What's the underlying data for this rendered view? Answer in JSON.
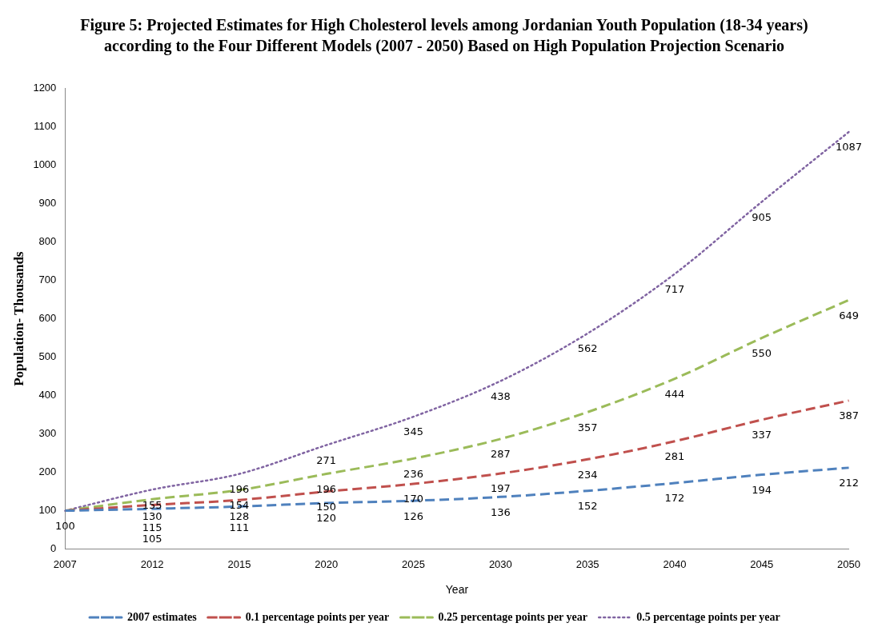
{
  "chart_data": {
    "type": "line",
    "title": "Figure 5: Projected Estimates for  High Cholesterol levels among Jordanian Youth Population (18-34 years) according to the Four Different Models (2007 - 2050) Based on High Population Projection Scenario",
    "xlabel": "Year",
    "ylabel": "Population- Thousands",
    "categories": [
      "2007",
      "2012",
      "2015",
      "2020",
      "2025",
      "2030",
      "2035",
      "2040",
      "2045",
      "2050"
    ],
    "series": [
      {
        "name": "2007 estimates",
        "color": "#4f81bd",
        "line_style": "dashed",
        "values": [
          100,
          105,
          111,
          120,
          126,
          136,
          152,
          172,
          194,
          212
        ],
        "value_labels": [
          "100",
          "105",
          "111",
          "120",
          "126",
          "136",
          "152",
          "172",
          "194",
          "212"
        ]
      },
      {
        "name": "0.1 percentage points per year",
        "color": "#c0504d",
        "line_style": "dashed",
        "values": [
          100,
          115,
          128,
          150,
          170,
          197,
          234,
          281,
          337,
          387
        ],
        "value_labels": [
          null,
          "115",
          "128",
          "150",
          "170",
          "197",
          "234",
          "281",
          "337",
          "387"
        ]
      },
      {
        "name": "0.25 percentage points per year",
        "color": "#9bbb59",
        "line_style": "dashed",
        "values": [
          100,
          130,
          154,
          196,
          236,
          287,
          357,
          444,
          550,
          649
        ],
        "value_labels": [
          null,
          "130",
          "154",
          "196",
          "236",
          "287",
          "357",
          "444",
          "550",
          "649"
        ]
      },
      {
        "name": "0.5 percentage points per year",
        "color": "#8064a2",
        "line_style": "dotted",
        "values": [
          100,
          155,
          196,
          271,
          345,
          438,
          562,
          717,
          905,
          1087
        ],
        "value_labels": [
          null,
          "155",
          "196",
          "271",
          "345",
          "438",
          "562",
          "717",
          "905",
          "1087"
        ]
      }
    ],
    "ylim": [
      0,
      1200
    ],
    "yticks": [
      0,
      100,
      200,
      300,
      400,
      500,
      600,
      700,
      800,
      900,
      1000,
      1100,
      1200
    ],
    "grid": false,
    "legend": "bottom",
    "marker": "none"
  }
}
